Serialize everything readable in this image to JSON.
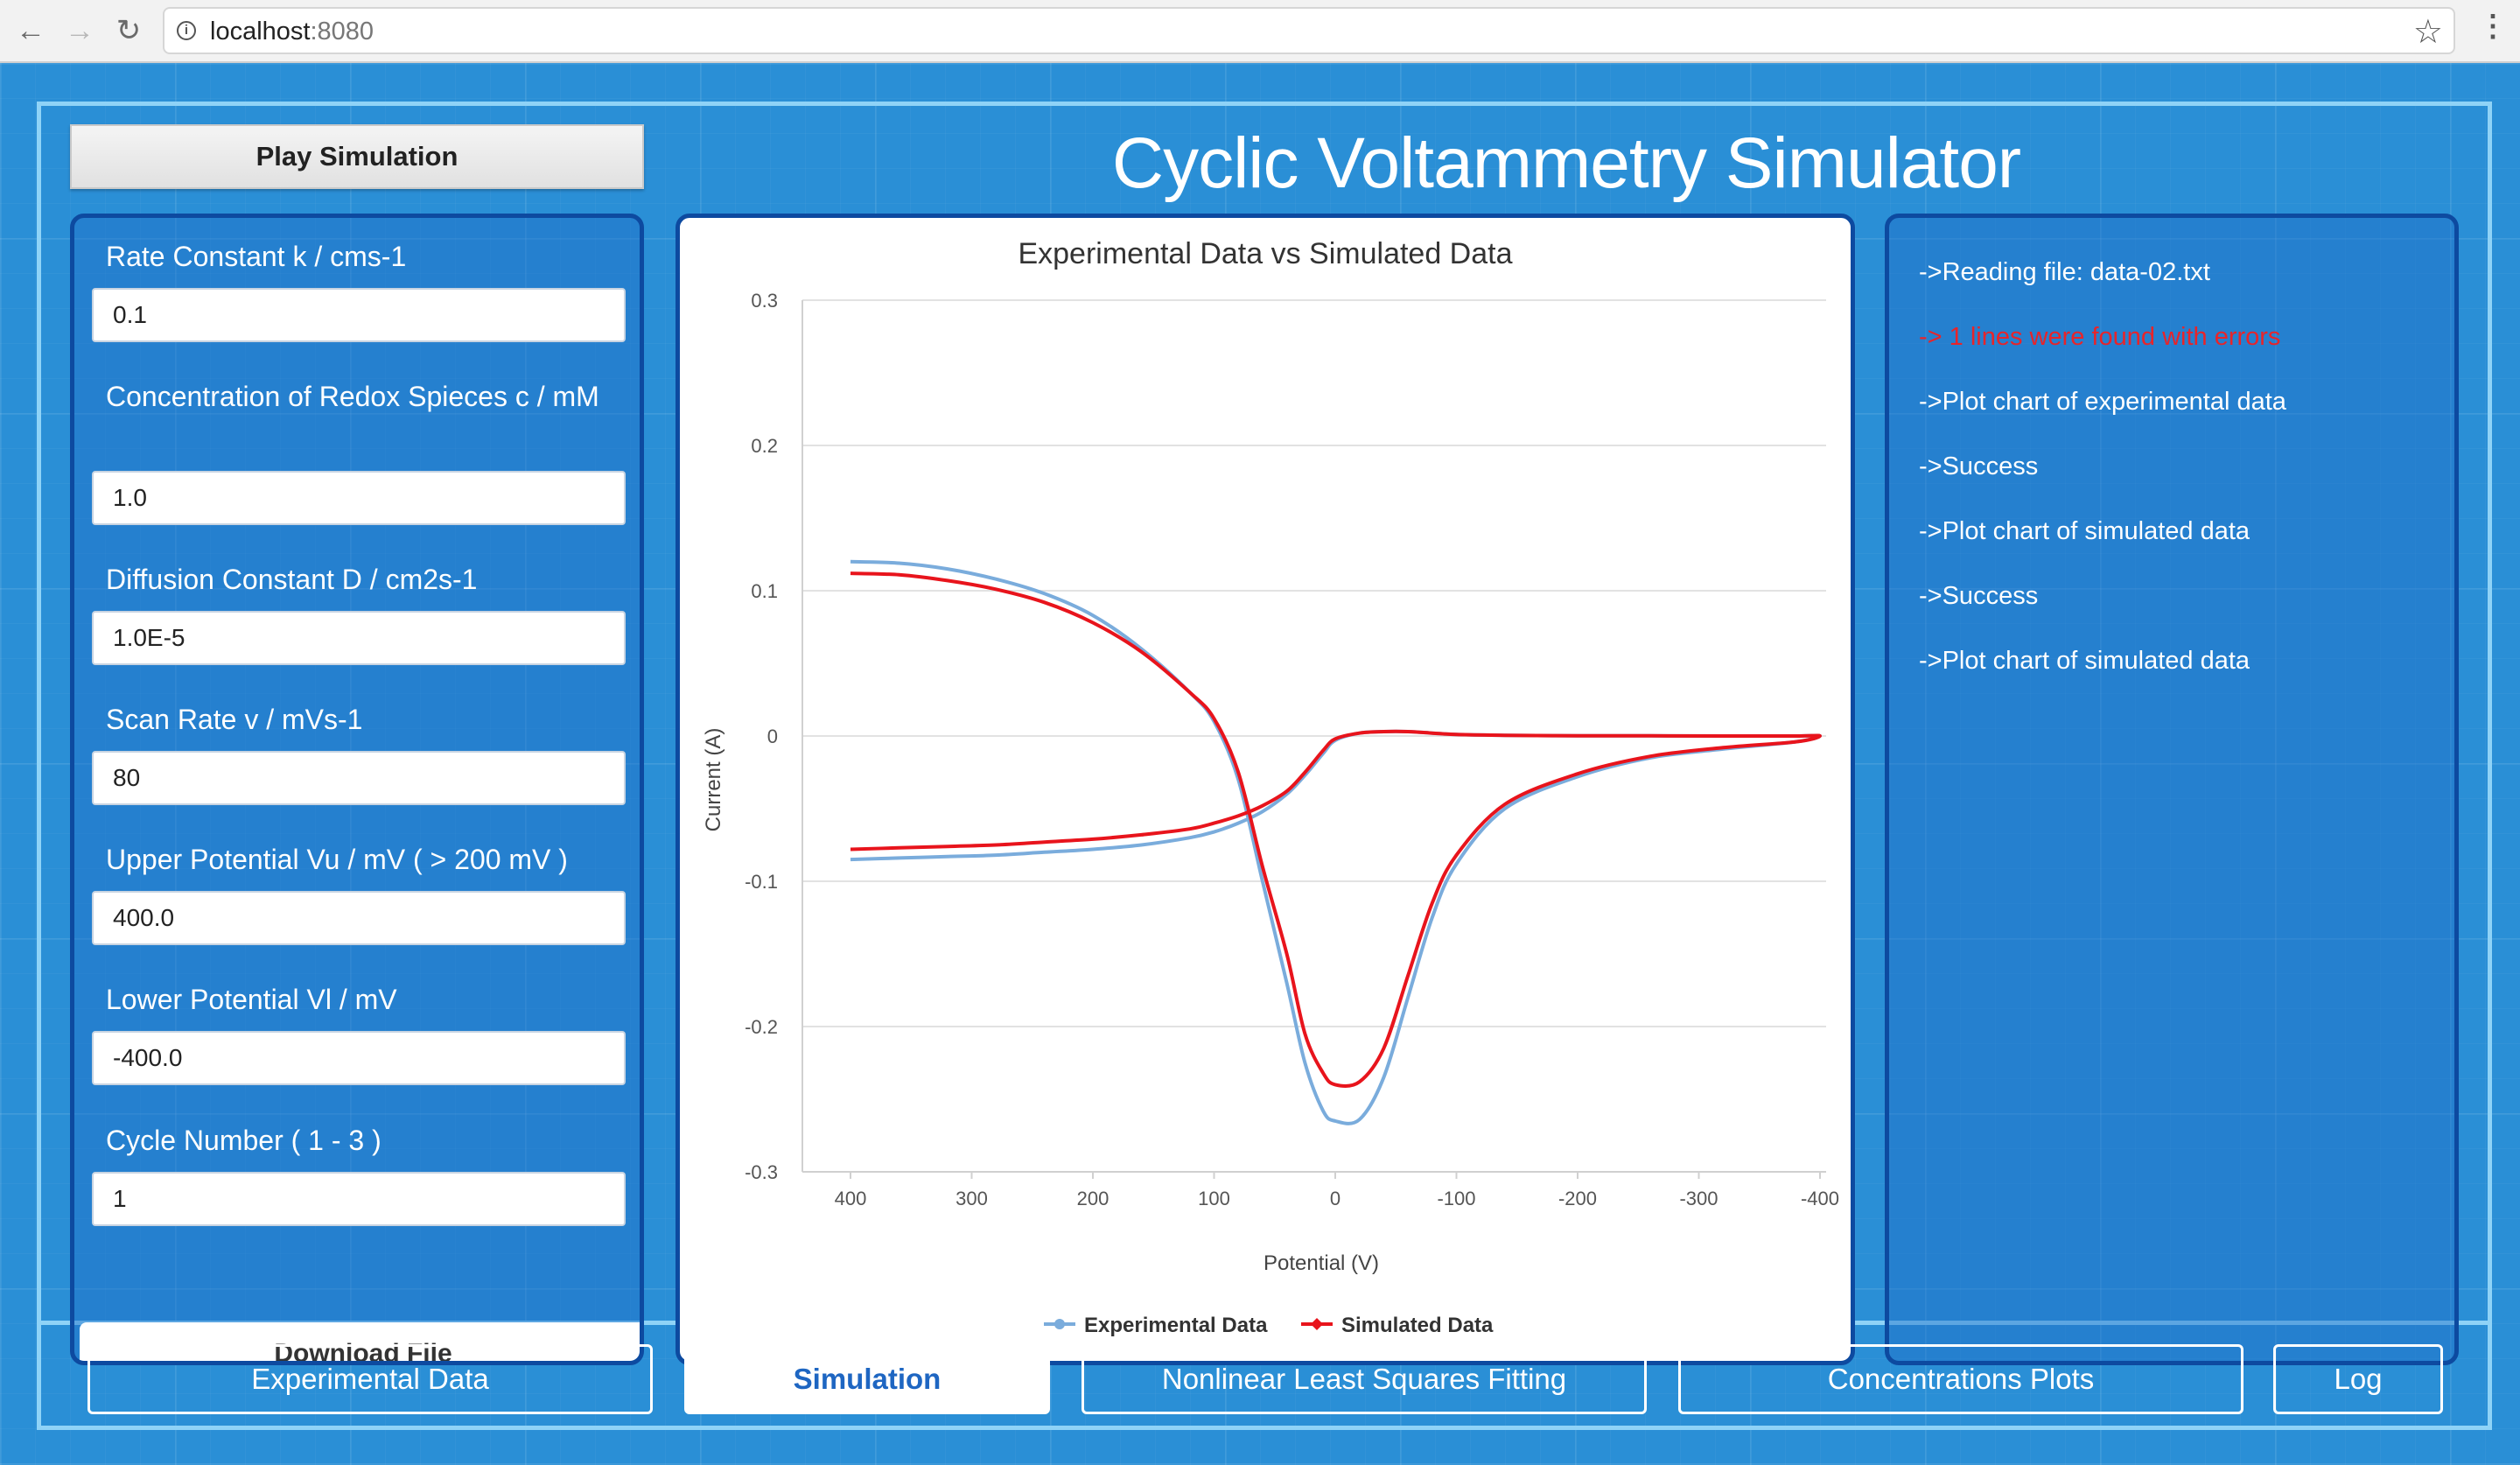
{
  "browser": {
    "url_host": "localhost",
    "url_port": ":8080"
  },
  "app": {
    "title": "Cyclic Voltammetry Simulator",
    "play_button": "Play Simulation"
  },
  "params": [
    {
      "label": "Rate Constant k / cms-1",
      "value": "0.1"
    },
    {
      "label": "Concentration of Redox Spieces c / mM",
      "value": "1.0"
    },
    {
      "label": "Diffusion Constant D / cm2s-1",
      "value": "1.0E-5"
    },
    {
      "label": "Scan Rate v / mVs-1",
      "value": "80"
    },
    {
      "label": "Upper Potential Vu / mV ( > 200 mV )",
      "value": "400.0"
    },
    {
      "label": "Lower Potential Vl / mV",
      "value": "-400.0"
    },
    {
      "label": "Cycle Number ( 1 - 3 )",
      "value": "1"
    }
  ],
  "params_cut_button": "Download File",
  "log": [
    {
      "text": "->Reading file: data-02.txt",
      "error": false
    },
    {
      "text": "-> 1 lines were found with errors",
      "error": true
    },
    {
      "text": "->Plot chart of experimental data",
      "error": false
    },
    {
      "text": "->Success",
      "error": false
    },
    {
      "text": "->Plot chart of simulated data",
      "error": false
    },
    {
      "text": "->Success",
      "error": false
    },
    {
      "text": "->Plot chart of simulated data",
      "error": false
    }
  ],
  "tabs": [
    {
      "label": "Experimental Data",
      "active": false
    },
    {
      "label": "Simulation",
      "active": true
    },
    {
      "label": "Nonlinear Least Squares Fitting",
      "active": false
    },
    {
      "label": "Concentrations Plots",
      "active": false
    },
    {
      "label": "Log",
      "active": false
    }
  ],
  "chart_data": {
    "type": "line",
    "title": "Experimental Data vs Simulated Data",
    "xlabel": "Potential (V)",
    "ylabel": "Current (A)",
    "xlim": [
      400,
      -400
    ],
    "ylim": [
      -0.3,
      0.3
    ],
    "x_ticks": [
      400,
      300,
      200,
      100,
      0,
      -100,
      -200,
      -300,
      -400
    ],
    "x_tick_labels": [
      "400",
      "300",
      "200",
      "100",
      "0",
      "-100",
      "-200",
      "-300",
      "-400"
    ],
    "y_ticks": [
      0.3,
      0.2,
      0.1,
      0,
      -0.1,
      -0.2,
      -0.3
    ],
    "y_tick_labels": [
      "0.3",
      "0.2",
      "0.1",
      "0",
      "-0.1",
      "-0.2",
      "-0.3"
    ],
    "grid": "horizontal",
    "legend_position": "bottom",
    "series": [
      {
        "name": "Experimental Data",
        "color": "#7aacdc",
        "x": [
          400,
          360,
          320,
          280,
          240,
          200,
          160,
          120,
          100,
          80,
          60,
          40,
          25,
          10,
          0,
          -20,
          -40,
          -60,
          -80,
          -100,
          -140,
          -200,
          -260,
          -320,
          -380,
          -400,
          -380,
          -320,
          -260,
          -200,
          -140,
          -100,
          -80,
          -60,
          -40,
          -20,
          0,
          10,
          25,
          40,
          60,
          80,
          100,
          120,
          160,
          200,
          240,
          280,
          320,
          360,
          400
        ],
        "y": [
          -0.085,
          -0.084,
          -0.083,
          -0.082,
          -0.08,
          -0.078,
          -0.075,
          -0.07,
          -0.066,
          -0.06,
          -0.052,
          -0.04,
          -0.027,
          -0.012,
          -0.003,
          0.002,
          0.003,
          0.003,
          0.002,
          0.001,
          0.0005,
          0.0002,
          0.0001,
          0.0,
          0.0,
          0.0,
          -0.004,
          -0.009,
          -0.015,
          -0.028,
          -0.05,
          -0.088,
          -0.125,
          -0.18,
          -0.235,
          -0.264,
          -0.265,
          -0.258,
          -0.225,
          -0.17,
          -0.1,
          -0.03,
          0.01,
          0.03,
          0.06,
          0.083,
          0.098,
          0.108,
          0.115,
          0.119,
          0.12
        ]
      },
      {
        "name": "Simulated Data",
        "color": "#e8141c",
        "x": [
          400,
          360,
          320,
          280,
          240,
          200,
          160,
          120,
          100,
          80,
          60,
          40,
          25,
          10,
          0,
          -20,
          -40,
          -60,
          -80,
          -100,
          -140,
          -200,
          -260,
          -320,
          -380,
          -400,
          -380,
          -320,
          -260,
          -200,
          -140,
          -100,
          -80,
          -60,
          -40,
          -20,
          0,
          10,
          25,
          40,
          60,
          80,
          100,
          120,
          160,
          200,
          240,
          280,
          320,
          360,
          400
        ],
        "y": [
          -0.078,
          -0.077,
          -0.076,
          -0.075,
          -0.073,
          -0.071,
          -0.068,
          -0.064,
          -0.06,
          -0.055,
          -0.048,
          -0.038,
          -0.025,
          -0.01,
          -0.002,
          0.002,
          0.003,
          0.003,
          0.002,
          0.001,
          0.0005,
          0.0002,
          0.0001,
          0.0,
          0.0,
          0.0,
          -0.004,
          -0.008,
          -0.014,
          -0.026,
          -0.047,
          -0.082,
          -0.115,
          -0.165,
          -0.215,
          -0.238,
          -0.24,
          -0.232,
          -0.205,
          -0.15,
          -0.09,
          -0.025,
          0.012,
          0.03,
          0.058,
          0.078,
          0.092,
          0.101,
          0.107,
          0.111,
          0.112
        ]
      }
    ]
  }
}
